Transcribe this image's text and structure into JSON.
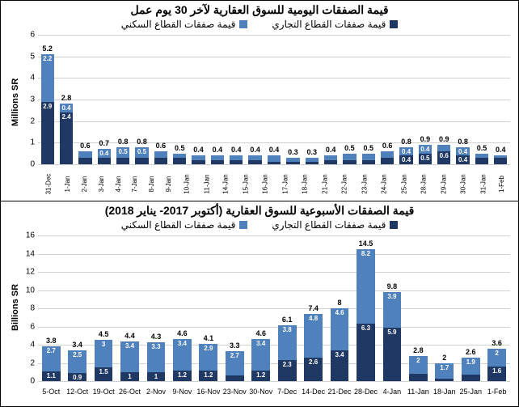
{
  "chart1": {
    "type": "stacked-bar",
    "title": "قيمة الصفقات اليومية للسوق العقارية لآخر 30 يوم عمل",
    "legend_residential": "قيمة صفقات القطاع السكني",
    "legend_commercial": "قيمة صفقات القطاع التجاري",
    "yaxis_label": "Millions SR",
    "ymax": 6,
    "ytick_step": 1,
    "colors": {
      "commercial": "#1f3864",
      "residential": "#4f81bd",
      "grid": "#d0d0d0",
      "bg": "#ffffff"
    },
    "categories": [
      "31-Dec",
      "1-Jan",
      "2-Jan",
      "3-Jan",
      "4-Jan",
      "7-Jan",
      "8-Jan",
      "9-Jan",
      "10-Jan",
      "11-Jan",
      "14-Jan",
      "15-Jan",
      "16-Jan",
      "17-Jan",
      "18-Jan",
      "21-Jan",
      "22-Jan",
      "23-Jan",
      "24-Jan",
      "25-Jan",
      "28-Jan",
      "29-Jan",
      "30-Jan",
      "31-Jan",
      "1-Feb"
    ],
    "commercial": [
      2.9,
      2.4,
      0.3,
      0.3,
      0.3,
      0.3,
      0.3,
      0.3,
      0.2,
      0.2,
      0.2,
      0.2,
      0.1,
      0.1,
      0.1,
      0.2,
      0.2,
      0.2,
      0.3,
      0.4,
      0.5,
      0.6,
      0.4,
      0.3,
      0.3
    ],
    "residential": [
      2.2,
      0.4,
      0.3,
      0.4,
      0.5,
      0.5,
      0.3,
      0.2,
      0.2,
      0.2,
      0.2,
      0.2,
      0.3,
      0.2,
      0.2,
      0.2,
      0.3,
      0.3,
      0.3,
      0.4,
      0.4,
      0.3,
      0.4,
      0.2,
      0.1
    ],
    "totals": [
      5.2,
      2.8,
      0.6,
      0.7,
      0.8,
      0.8,
      0.6,
      0.5,
      0.4,
      0.4,
      0.4,
      0.4,
      0.4,
      0.3,
      0.3,
      0.4,
      0.5,
      0.5,
      0.6,
      0.8,
      0.9,
      0.9,
      0.8,
      0.5,
      0.4
    ]
  },
  "chart2": {
    "type": "stacked-bar",
    "title": "قيمة الصفقات الأسبوعية للسوق العقارية (أكتوبر 2017- يناير 2018)",
    "legend_residential": "قيمة صفقات القطاع السكني",
    "legend_commercial": "قيمة صفقات القطاع التجاري",
    "yaxis_label": "Billions SR",
    "ymax": 16,
    "ytick_step": 2,
    "colors": {
      "commercial": "#1f3864",
      "residential": "#4f81bd",
      "grid": "#d0d0d0",
      "bg": "#ffffff"
    },
    "categories": [
      "5-Oct",
      "12-Oct",
      "19-Oct",
      "26-Oct",
      "2-Nov",
      "9-Nov",
      "16-Nov",
      "23-Nov",
      "30-Nov",
      "7-Dec",
      "14-Dec",
      "21-Dec",
      "28-Dec",
      "4-Jan",
      "11-Jan",
      "18-Jan",
      "25-Jan",
      "1-Feb"
    ],
    "commercial": [
      1.1,
      0.9,
      1.5,
      1.0,
      1.0,
      1.2,
      1.2,
      0.6,
      1.2,
      2.3,
      2.6,
      3.4,
      6.3,
      5.9,
      0.8,
      0.3,
      0.7,
      1.6
    ],
    "residential": [
      2.7,
      2.5,
      3.0,
      3.4,
      3.3,
      3.4,
      2.9,
      2.7,
      3.4,
      3.8,
      4.8,
      4.6,
      8.2,
      3.9,
      2.0,
      1.7,
      1.9,
      2.0
    ],
    "totals": [
      3.8,
      3.4,
      4.5,
      4.4,
      4.3,
      4.6,
      4.1,
      3.3,
      4.6,
      6.1,
      7.4,
      8.0,
      14.5,
      9.8,
      2.8,
      2.0,
      2.6,
      3.6
    ]
  }
}
